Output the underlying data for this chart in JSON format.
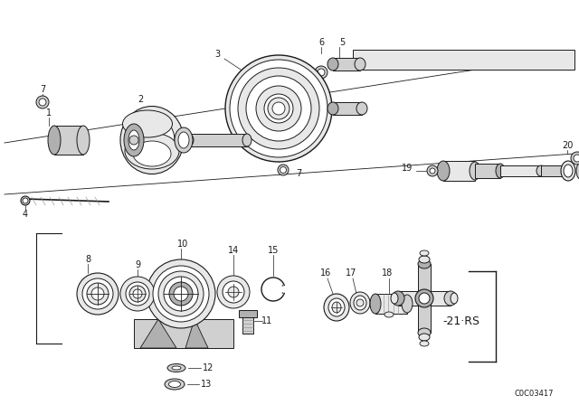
{
  "bg_color": "#ffffff",
  "fg_color": "#000000",
  "watermark": "C0C03417",
  "label_rs": "-21·RS",
  "fig_width": 6.4,
  "fig_height": 4.48,
  "dpi": 100,
  "line_color": "#1a1a1a",
  "fill_light": "#e8e8e8",
  "fill_mid": "#d0d0d0",
  "fill_dark": "#b0b0b0",
  "fill_white": "#ffffff"
}
